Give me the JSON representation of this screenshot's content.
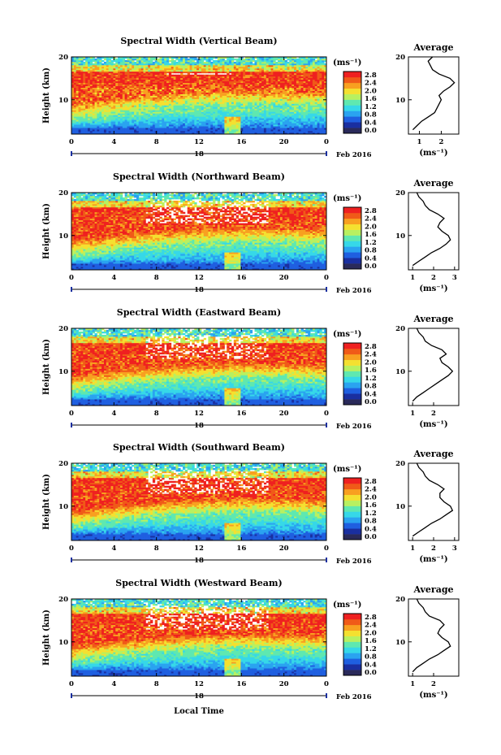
{
  "figure": {
    "date_label": "Feb 2016",
    "day_label": "18",
    "xlabel": "Local Time",
    "ylabel": "Height (km)",
    "cbar_unit": "(ms⁻¹)",
    "avg_title": "Average",
    "avg_xlabel": "(ms⁻¹)"
  },
  "colorbar_colors": [
    "#2a2a5a",
    "#1a2fa0",
    "#1f5fe0",
    "#2aa3f0",
    "#36d8e8",
    "#5fe8b0",
    "#b8f060",
    "#f4e030",
    "#f8a020",
    "#f05a18",
    "#ef2020"
  ],
  "chart_data": [
    {
      "type": "heatmap",
      "title": "Spectral Width (Vertical Beam)",
      "x_ticks": [
        "0",
        "4",
        "8",
        "12",
        "16",
        "20",
        "0"
      ],
      "y_ticks": [
        "20",
        "10"
      ],
      "xlim": [
        0,
        24
      ],
      "ylim": [
        2,
        20
      ],
      "colorbar_ticks": [
        "2.8",
        "2.4",
        "2.0",
        "1.6",
        "1.2",
        "0.8",
        "0.4",
        "0.0"
      ],
      "average": {
        "x_ticks": [
          "1",
          "2"
        ],
        "y_ticks": [
          "20",
          "10"
        ],
        "xlim": [
          0.5,
          2.8
        ],
        "profile": [
          [
            3,
            0.7
          ],
          [
            4,
            0.9
          ],
          [
            5,
            1.1
          ],
          [
            6,
            1.4
          ],
          [
            7,
            1.7
          ],
          [
            8,
            1.8
          ],
          [
            9,
            1.9
          ],
          [
            10,
            2.0
          ],
          [
            11,
            1.9
          ],
          [
            12,
            2.1
          ],
          [
            13,
            2.4
          ],
          [
            14,
            2.6
          ],
          [
            15,
            2.4
          ],
          [
            16,
            1.9
          ],
          [
            17,
            1.6
          ],
          [
            18,
            1.5
          ],
          [
            19,
            1.4
          ],
          [
            20,
            1.6
          ]
        ]
      }
    },
    {
      "type": "heatmap",
      "title": "Spectral Width (Northward Beam)",
      "x_ticks": [
        "0",
        "4",
        "8",
        "12",
        "16",
        "20",
        "0"
      ],
      "y_ticks": [
        "20",
        "10"
      ],
      "xlim": [
        0,
        24
      ],
      "ylim": [
        2,
        20
      ],
      "colorbar_ticks": [
        "2.8",
        "2.4",
        "2.0",
        "1.6",
        "1.2",
        "0.8",
        "0.4",
        "0.0"
      ],
      "average": {
        "x_ticks": [
          "1",
          "2",
          "3"
        ],
        "y_ticks": [
          "20",
          "10"
        ],
        "xlim": [
          0.8,
          3.2
        ],
        "profile": [
          [
            3,
            1.0
          ],
          [
            4,
            1.3
          ],
          [
            5,
            1.6
          ],
          [
            6,
            1.9
          ],
          [
            7,
            2.3
          ],
          [
            8,
            2.6
          ],
          [
            9,
            2.8
          ],
          [
            10,
            2.7
          ],
          [
            11,
            2.4
          ],
          [
            12,
            2.2
          ],
          [
            13,
            2.3
          ],
          [
            14,
            2.5
          ],
          [
            15,
            2.2
          ],
          [
            16,
            1.8
          ],
          [
            17,
            1.6
          ],
          [
            18,
            1.5
          ],
          [
            19,
            1.3
          ],
          [
            20,
            1.2
          ]
        ]
      }
    },
    {
      "type": "heatmap",
      "title": "Spectral Width (Eastward Beam)",
      "x_ticks": [
        "0",
        "4",
        "8",
        "12",
        "16",
        "20",
        "0"
      ],
      "y_ticks": [
        "20",
        "10"
      ],
      "xlim": [
        0,
        24
      ],
      "ylim": [
        2,
        20
      ],
      "colorbar_ticks": [
        "2.8",
        "2.4",
        "2.0",
        "1.6",
        "1.2",
        "0.8",
        "0.4",
        "0.0"
      ],
      "average": {
        "x_ticks": [
          "1",
          "2"
        ],
        "y_ticks": [
          "20",
          "10"
        ],
        "xlim": [
          0.8,
          3.2
        ],
        "profile": [
          [
            3,
            1.0
          ],
          [
            4,
            1.2
          ],
          [
            5,
            1.5
          ],
          [
            6,
            1.8
          ],
          [
            7,
            2.1
          ],
          [
            8,
            2.4
          ],
          [
            9,
            2.7
          ],
          [
            10,
            2.9
          ],
          [
            11,
            2.7
          ],
          [
            12,
            2.4
          ],
          [
            13,
            2.3
          ],
          [
            14,
            2.6
          ],
          [
            15,
            2.4
          ],
          [
            16,
            1.9
          ],
          [
            17,
            1.6
          ],
          [
            18,
            1.5
          ],
          [
            19,
            1.3
          ],
          [
            20,
            1.2
          ]
        ]
      }
    },
    {
      "type": "heatmap",
      "title": "Spectral Width (Southward Beam)",
      "x_ticks": [
        "0",
        "4",
        "8",
        "12",
        "16",
        "20",
        "0"
      ],
      "y_ticks": [
        "20",
        "10"
      ],
      "xlim": [
        0,
        24
      ],
      "ylim": [
        2,
        20
      ],
      "colorbar_ticks": [
        "2.8",
        "2.4",
        "2.0",
        "1.6",
        "1.2",
        "0.8",
        "0.4",
        "0.0"
      ],
      "average": {
        "x_ticks": [
          "1",
          "2",
          "3"
        ],
        "y_ticks": [
          "20",
          "10"
        ],
        "xlim": [
          0.8,
          3.2
        ],
        "profile": [
          [
            3,
            1.0
          ],
          [
            4,
            1.3
          ],
          [
            5,
            1.6
          ],
          [
            6,
            1.9
          ],
          [
            7,
            2.3
          ],
          [
            8,
            2.6
          ],
          [
            9,
            2.9
          ],
          [
            10,
            2.8
          ],
          [
            11,
            2.5
          ],
          [
            12,
            2.3
          ],
          [
            13,
            2.3
          ],
          [
            14,
            2.5
          ],
          [
            15,
            2.2
          ],
          [
            16,
            1.8
          ],
          [
            17,
            1.6
          ],
          [
            18,
            1.5
          ],
          [
            19,
            1.3
          ],
          [
            20,
            1.2
          ]
        ]
      }
    },
    {
      "type": "heatmap",
      "title": "Spectral Width (Westward Beam)",
      "x_ticks": [
        "0",
        "4",
        "8",
        "12",
        "16",
        "20",
        "0"
      ],
      "y_ticks": [
        "20",
        "10"
      ],
      "xlim": [
        0,
        24
      ],
      "ylim": [
        2,
        20
      ],
      "colorbar_ticks": [
        "2.8",
        "2.4",
        "2.0",
        "1.6",
        "1.2",
        "0.8",
        "0.4",
        "0.0"
      ],
      "average": {
        "x_ticks": [
          "1",
          "2"
        ],
        "y_ticks": [
          "20",
          "10"
        ],
        "xlim": [
          0.8,
          3.2
        ],
        "profile": [
          [
            3,
            1.0
          ],
          [
            4,
            1.2
          ],
          [
            5,
            1.5
          ],
          [
            6,
            1.8
          ],
          [
            7,
            2.2
          ],
          [
            8,
            2.5
          ],
          [
            9,
            2.8
          ],
          [
            10,
            2.7
          ],
          [
            11,
            2.4
          ],
          [
            12,
            2.2
          ],
          [
            13,
            2.3
          ],
          [
            14,
            2.5
          ],
          [
            15,
            2.3
          ],
          [
            16,
            1.8
          ],
          [
            17,
            1.6
          ],
          [
            18,
            1.5
          ],
          [
            19,
            1.3
          ],
          [
            20,
            1.2
          ]
        ]
      }
    }
  ]
}
